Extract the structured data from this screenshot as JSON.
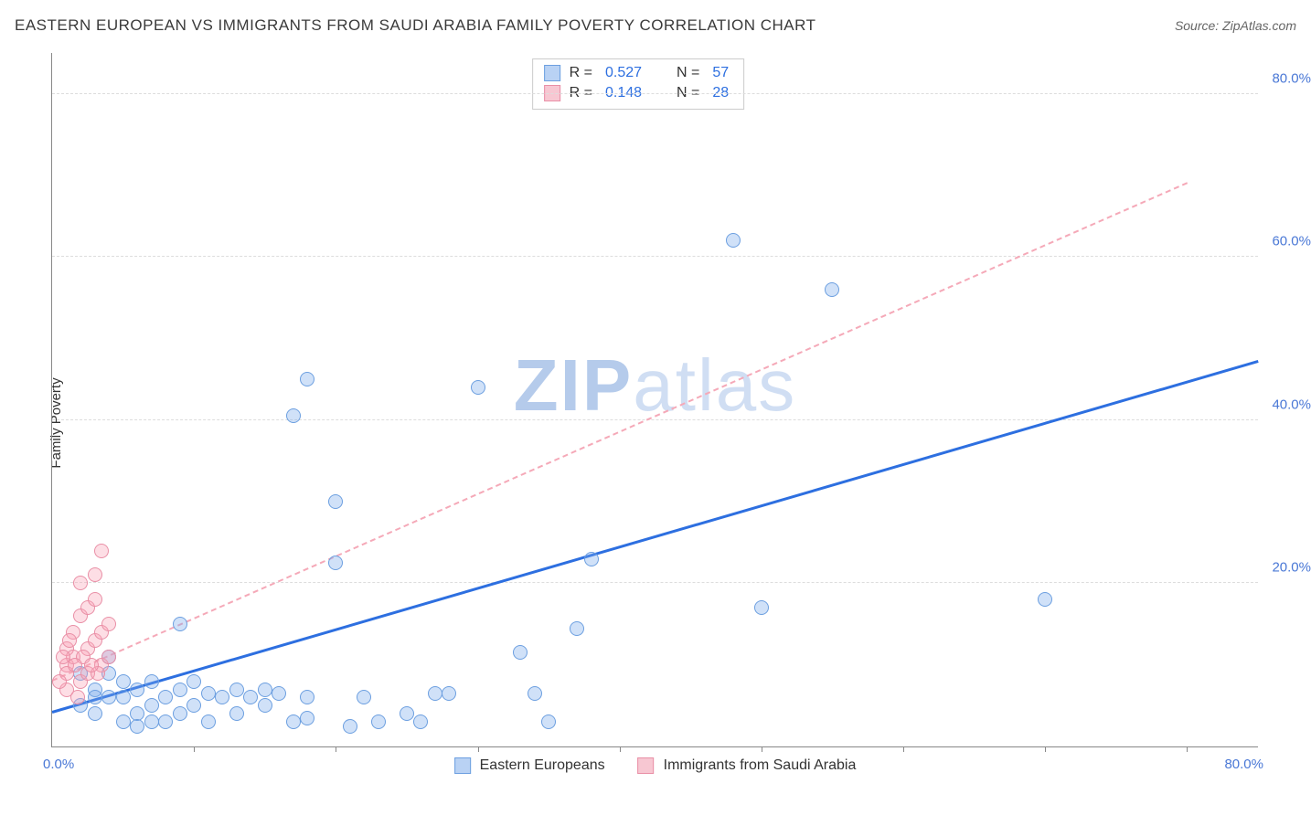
{
  "title": "EASTERN EUROPEAN VS IMMIGRANTS FROM SAUDI ARABIA FAMILY POVERTY CORRELATION CHART",
  "source": "Source: ZipAtlas.com",
  "ylabel": "Family Poverty",
  "watermark_bold": "ZIP",
  "watermark_light": "atlas",
  "chart": {
    "type": "scatter",
    "xlim": [
      0,
      85
    ],
    "ylim": [
      0,
      85
    ],
    "x_origin_label": "0.0%",
    "x_max_label": "80.0%",
    "y_grid": [
      20,
      40,
      60,
      80
    ],
    "y_grid_labels": [
      "20.0%",
      "40.0%",
      "60.0%",
      "80.0%"
    ],
    "x_ticks": [
      10,
      20,
      30,
      40,
      50,
      60,
      70,
      80
    ],
    "background_color": "#ffffff",
    "grid_color": "#dddddd",
    "axis_color": "#888888",
    "tick_label_color": "#4a78d6",
    "marker_radius": 8,
    "marker_border_width": 1.5,
    "series": [
      {
        "key": "blue",
        "label": "Eastern Europeans",
        "fill": "rgba(120,170,235,0.35)",
        "stroke": "#6c9fe0",
        "swatch_fill": "#b9d2f4",
        "swatch_border": "#6c9fe0",
        "R_label": "R =",
        "R_value": "0.527",
        "N_label": "N =",
        "N_value": "57",
        "trend": {
          "x1": 0,
          "y1": 4,
          "x2": 85,
          "y2": 47,
          "style": "solid",
          "color": "#2d6fe0",
          "width": 3
        },
        "points": [
          [
            2,
            5
          ],
          [
            3,
            7
          ],
          [
            3,
            4
          ],
          [
            4,
            6
          ],
          [
            4,
            9
          ],
          [
            4,
            11
          ],
          [
            5,
            6
          ],
          [
            5,
            8
          ],
          [
            6,
            4
          ],
          [
            6,
            7
          ],
          [
            7,
            5
          ],
          [
            7,
            8
          ],
          [
            8,
            3
          ],
          [
            8,
            6
          ],
          [
            9,
            7
          ],
          [
            9,
            4
          ],
          [
            10,
            5
          ],
          [
            10,
            8
          ],
          [
            11,
            6.5
          ],
          [
            11,
            3
          ],
          [
            12,
            6
          ],
          [
            13,
            7
          ],
          [
            13,
            4
          ],
          [
            14,
            6
          ],
          [
            15,
            7
          ],
          [
            9,
            15
          ],
          [
            15,
            5
          ],
          [
            16,
            6.5
          ],
          [
            17,
            3
          ],
          [
            18,
            6
          ],
          [
            18,
            3.5
          ],
          [
            17,
            40.5
          ],
          [
            18,
            45
          ],
          [
            20,
            30
          ],
          [
            20,
            22.5
          ],
          [
            21,
            2.5
          ],
          [
            22,
            6
          ],
          [
            23,
            3
          ],
          [
            25,
            4
          ],
          [
            26,
            3
          ],
          [
            27,
            6.5
          ],
          [
            28,
            6.5
          ],
          [
            30,
            44
          ],
          [
            33,
            11.5
          ],
          [
            34,
            6.5
          ],
          [
            35,
            3
          ],
          [
            37,
            14.5
          ],
          [
            38,
            23
          ],
          [
            48,
            62
          ],
          [
            55,
            56
          ],
          [
            50,
            17
          ],
          [
            70,
            18
          ],
          [
            5,
            3
          ],
          [
            6,
            2.5
          ],
          [
            7,
            3
          ],
          [
            3,
            6
          ],
          [
            2,
            9
          ]
        ]
      },
      {
        "key": "pink",
        "label": "Immigrants from Saudi Arabia",
        "fill": "rgba(250,160,180,0.35)",
        "stroke": "#e98fa6",
        "swatch_fill": "#f7c7d2",
        "swatch_border": "#e98fa6",
        "R_label": "R =",
        "R_value": "0.148",
        "N_label": "N =",
        "N_value": "28",
        "trend": {
          "x1": 0,
          "y1": 8,
          "x2": 80,
          "y2": 69,
          "style": "dashed",
          "color": "#f5a9b8",
          "width": 2
        },
        "points": [
          [
            1,
            10
          ],
          [
            1,
            12
          ],
          [
            1.5,
            11
          ],
          [
            1.5,
            14
          ],
          [
            2,
            8
          ],
          [
            2,
            16
          ],
          [
            2,
            20
          ],
          [
            2.5,
            9
          ],
          [
            2.5,
            12
          ],
          [
            2.5,
            17
          ],
          [
            3,
            13
          ],
          [
            3,
            18
          ],
          [
            3,
            21
          ],
          [
            3.5,
            10
          ],
          [
            3.5,
            14
          ],
          [
            3.5,
            24
          ],
          [
            4,
            11
          ],
          [
            4,
            15
          ],
          [
            1,
            7
          ],
          [
            1,
            9
          ],
          [
            1.8,
            6
          ],
          [
            0.8,
            11
          ],
          [
            0.5,
            8
          ],
          [
            1.2,
            13
          ],
          [
            2.2,
            11
          ],
          [
            3.2,
            9
          ],
          [
            2.8,
            10
          ],
          [
            1.6,
            10
          ]
        ]
      }
    ]
  }
}
